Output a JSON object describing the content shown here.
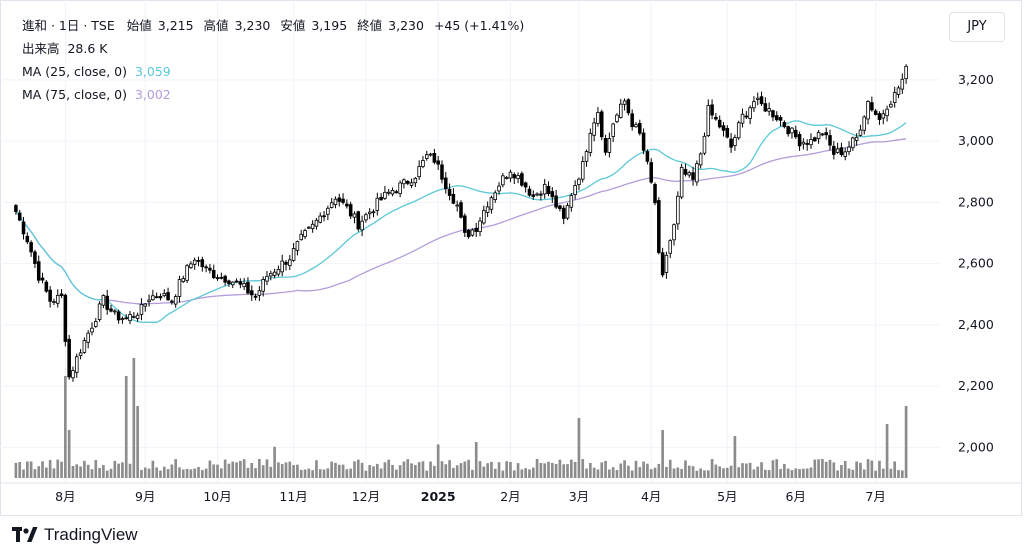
{
  "header": {
    "symbol": "進和 · 1日 · TSE",
    "open_label": "始値",
    "open": "3,215",
    "high_label": "高値",
    "high": "3,230",
    "low_label": "安値",
    "low": "3,195",
    "close_label": "終値",
    "close": "3,230",
    "change": "+45 (+1.41%)",
    "volume_label": "出来高",
    "volume": "28.6 K",
    "ma25_label": "MA (25, close, 0)",
    "ma25_value": "3,059",
    "ma75_label": "MA (75, close, 0)",
    "ma75_value": "3,002"
  },
  "currency": "JPY",
  "brand": {
    "name": "TradingView"
  },
  "colors": {
    "up": "#ffffff",
    "down": "#000000",
    "outline": "#000000",
    "ma25": "#5bc8d6",
    "ma75": "#b39ddb",
    "volume": "#8c8c8c",
    "grid": "#f0f3fa"
  },
  "chart_data": {
    "type": "candlestick",
    "ylim": [
      1900,
      3330
    ],
    "y_ticks": [
      "2,000",
      "2,200",
      "2,400",
      "2,600",
      "2,800",
      "3,000",
      "3,200"
    ],
    "x_ticks": [
      {
        "label": "8月",
        "bar": 13,
        "bold": false
      },
      {
        "label": "9月",
        "bar": 34,
        "bold": false
      },
      {
        "label": "10月",
        "bar": 53,
        "bold": false
      },
      {
        "label": "11月",
        "bar": 73,
        "bold": false
      },
      {
        "label": "12月",
        "bar": 92,
        "bold": false
      },
      {
        "label": "2025",
        "bar": 111,
        "bold": true
      },
      {
        "label": "2月",
        "bar": 130,
        "bold": false
      },
      {
        "label": "3月",
        "bar": 148,
        "bold": false
      },
      {
        "label": "4月",
        "bar": 167,
        "bold": false
      },
      {
        "label": "5月",
        "bar": 187,
        "bold": false
      },
      {
        "label": "6月",
        "bar": 205,
        "bold": false
      },
      {
        "label": "7月",
        "bar": 226,
        "bold": false
      }
    ],
    "anchors": [
      [
        0,
        2770
      ],
      [
        3,
        2680
      ],
      [
        6,
        2560
      ],
      [
        9,
        2480
      ],
      [
        12,
        2490
      ],
      [
        13,
        2360
      ],
      [
        14,
        2230
      ],
      [
        17,
        2320
      ],
      [
        20,
        2400
      ],
      [
        23,
        2480
      ],
      [
        26,
        2430
      ],
      [
        29,
        2420
      ],
      [
        33,
        2450
      ],
      [
        35,
        2490
      ],
      [
        38,
        2500
      ],
      [
        41,
        2480
      ],
      [
        44,
        2560
      ],
      [
        47,
        2620
      ],
      [
        50,
        2580
      ],
      [
        53,
        2560
      ],
      [
        56,
        2550
      ],
      [
        60,
        2520
      ],
      [
        63,
        2490
      ],
      [
        66,
        2560
      ],
      [
        69,
        2590
      ],
      [
        72,
        2620
      ],
      [
        75,
        2680
      ],
      [
        78,
        2720
      ],
      [
        81,
        2770
      ],
      [
        84,
        2820
      ],
      [
        87,
        2780
      ],
      [
        90,
        2730
      ],
      [
        93,
        2770
      ],
      [
        96,
        2810
      ],
      [
        99,
        2840
      ],
      [
        102,
        2860
      ],
      [
        105,
        2890
      ],
      [
        108,
        2950
      ],
      [
        110,
        2940
      ],
      [
        113,
        2860
      ],
      [
        116,
        2790
      ],
      [
        118,
        2690
      ],
      [
        121,
        2720
      ],
      [
        124,
        2800
      ],
      [
        127,
        2860
      ],
      [
        130,
        2910
      ],
      [
        133,
        2870
      ],
      [
        136,
        2820
      ],
      [
        139,
        2850
      ],
      [
        142,
        2790
      ],
      [
        144,
        2740
      ],
      [
        146,
        2830
      ],
      [
        149,
        2920
      ],
      [
        151,
        3040
      ],
      [
        153,
        3100
      ],
      [
        155,
        2960
      ],
      [
        157,
        3060
      ],
      [
        160,
        3130
      ],
      [
        162,
        3060
      ],
      [
        164,
        3020
      ],
      [
        166,
        2920
      ],
      [
        168,
        2800
      ],
      [
        169,
        2620
      ],
      [
        170,
        2550
      ],
      [
        171,
        2630
      ],
      [
        173,
        2720
      ],
      [
        175,
        2900
      ],
      [
        178,
        2870
      ],
      [
        180,
        2960
      ],
      [
        182,
        3100
      ],
      [
        185,
        3050
      ],
      [
        188,
        2980
      ],
      [
        191,
        3080
      ],
      [
        194,
        3130
      ],
      [
        197,
        3110
      ],
      [
        200,
        3080
      ],
      [
        203,
        3040
      ],
      [
        206,
        3000
      ],
      [
        209,
        3000
      ],
      [
        212,
        3030
      ],
      [
        215,
        2960
      ],
      [
        218,
        2970
      ],
      [
        221,
        3010
      ],
      [
        224,
        3130
      ],
      [
        227,
        3070
      ],
      [
        229,
        3120
      ],
      [
        231,
        3150
      ],
      [
        233,
        3200
      ],
      [
        234,
        3230
      ]
    ],
    "volume_spikes": {
      "13": 0.85,
      "14": 0.4,
      "29": 0.85,
      "31": 1.0,
      "32": 0.6,
      "68": 0.26,
      "111": 0.28,
      "121": 0.3,
      "148": 0.5,
      "170": 0.4,
      "189": 0.35,
      "229": 0.45,
      "234": 0.6
    }
  }
}
